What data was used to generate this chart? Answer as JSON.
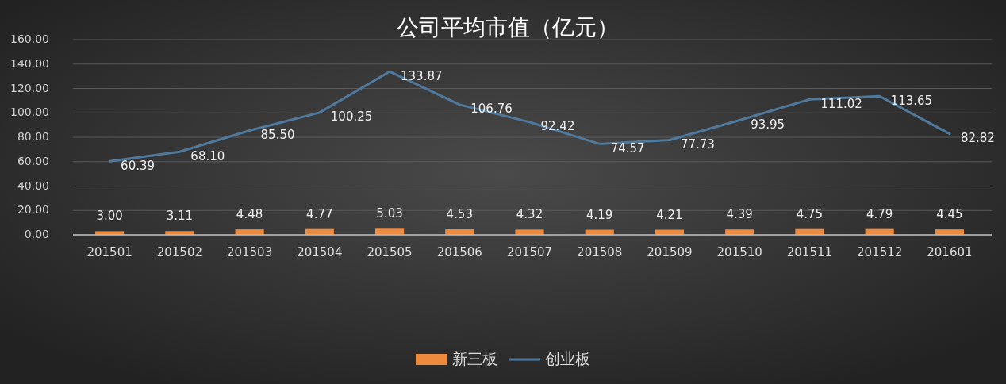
{
  "chart_data": {
    "type": "bar",
    "title": "公司平均市值（亿元）",
    "categories": [
      "201501",
      "201502",
      "201503",
      "201504",
      "201505",
      "201506",
      "201507",
      "201508",
      "201509",
      "201510",
      "201511",
      "201512",
      "201601"
    ],
    "series": [
      {
        "name": "新三板",
        "color": "#ee8a3e",
        "values": [
          3.0,
          3.11,
          4.48,
          4.77,
          5.03,
          4.53,
          4.32,
          4.19,
          4.21,
          4.39,
          4.75,
          4.79,
          4.45
        ],
        "value_labels": [
          "3.00",
          "3.11",
          "4.48",
          "4.77",
          "5.03",
          "4.53",
          "4.32",
          "4.19",
          "4.21",
          "4.39",
          "4.75",
          "4.79",
          "4.45"
        ]
      },
      {
        "name": "创业板",
        "type": "line",
        "color": "#4f7a9e",
        "values": [
          60.39,
          68.1,
          85.5,
          100.25,
          133.87,
          106.76,
          92.42,
          74.57,
          77.73,
          93.95,
          111.02,
          113.65,
          82.82
        ],
        "value_labels": [
          "60.39",
          "68.10",
          "85.50",
          "100.25",
          "133.87",
          "106.76",
          "92.42",
          "74.57",
          "77.73",
          "93.95",
          "111.02",
          "113.65",
          "82.82"
        ]
      }
    ],
    "ylim": [
      0,
      160
    ],
    "yticks": [
      {
        "value": 0,
        "label": "0.00"
      },
      {
        "value": 20,
        "label": "20.00"
      },
      {
        "value": 40,
        "label": "40.00"
      },
      {
        "value": 60,
        "label": "60.00"
      },
      {
        "value": 80,
        "label": "80.00"
      },
      {
        "value": 100,
        "label": "100.00"
      },
      {
        "value": 120,
        "label": "120.00"
      },
      {
        "value": 140,
        "label": "140.00"
      },
      {
        "value": 160,
        "label": "160.00"
      }
    ],
    "grid": "y",
    "legend": "bottom"
  }
}
